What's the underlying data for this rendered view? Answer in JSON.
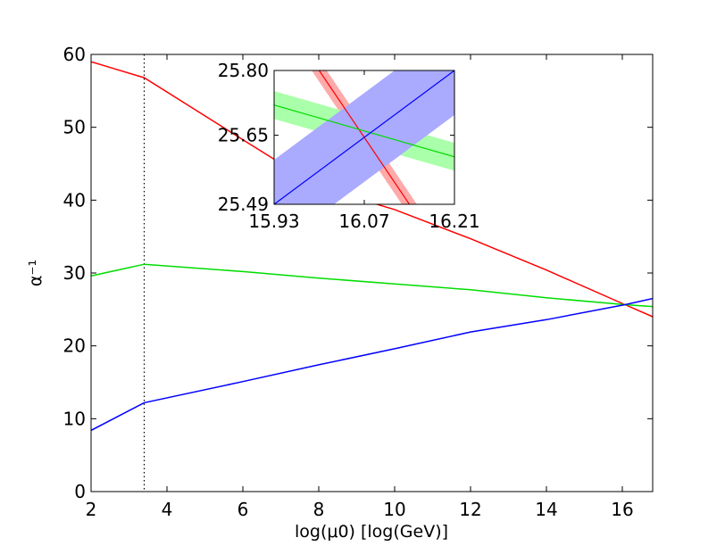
{
  "chart_data": [
    {
      "type": "line",
      "title": "",
      "xlabel": "log(μ0) [log(GeV)]",
      "ylabel": "α⁻¹",
      "xlim": [
        2,
        16.8
      ],
      "ylim": [
        0,
        60
      ],
      "xticks": [
        "2",
        "4",
        "6",
        "8",
        "10",
        "12",
        "14",
        "16"
      ],
      "yticks": [
        "0",
        "10",
        "20",
        "30",
        "40",
        "50",
        "60"
      ],
      "grid": false,
      "legend": "none",
      "vline": {
        "x": 3.4,
        "style": "dotted"
      },
      "series": [
        {
          "color": "#ff0000",
          "x": [
            2.0,
            3.4,
            4.5,
            6.0,
            8.0,
            10.0,
            12.0,
            14.0,
            16.07,
            16.8
          ],
          "y": [
            59.0,
            56.8,
            53.2,
            48.3,
            41.8,
            38.7,
            34.7,
            30.4,
            25.65,
            24.0
          ]
        },
        {
          "color": "#00dd00",
          "x": [
            2.0,
            3.4,
            6.0,
            8.0,
            10.0,
            12.0,
            14.0,
            16.07,
            16.8
          ],
          "y": [
            29.6,
            31.2,
            30.2,
            29.3,
            28.5,
            27.7,
            26.6,
            25.65,
            25.4
          ]
        },
        {
          "color": "#0000ff",
          "x": [
            2.0,
            3.4,
            6.0,
            8.0,
            10.0,
            12.0,
            14.0,
            16.07,
            16.8
          ],
          "y": [
            8.4,
            12.2,
            15.1,
            17.4,
            19.6,
            21.9,
            23.6,
            25.65,
            26.5
          ]
        }
      ]
    },
    {
      "type": "line",
      "title": "",
      "xlim": [
        15.93,
        16.21
      ],
      "ylim": [
        25.49,
        25.8
      ],
      "xticks": [
        "15.93",
        "16.07",
        "16.21"
      ],
      "yticks": [
        "25.49",
        "25.65",
        "25.80"
      ],
      "series": [
        {
          "color": "#ff0000",
          "band_color": "#ffaaaa",
          "x": [
            16.0,
            16.14
          ],
          "y": [
            25.8,
            25.49
          ]
        },
        {
          "color": "#00dd00",
          "band_color": "#aaffaa",
          "x": [
            15.93,
            16.21
          ],
          "y": [
            25.72,
            25.6
          ]
        },
        {
          "color": "#0000ff",
          "band_color": "#aaaaff",
          "x": [
            15.93,
            16.21
          ],
          "y": [
            25.49,
            25.8
          ]
        }
      ]
    }
  ]
}
